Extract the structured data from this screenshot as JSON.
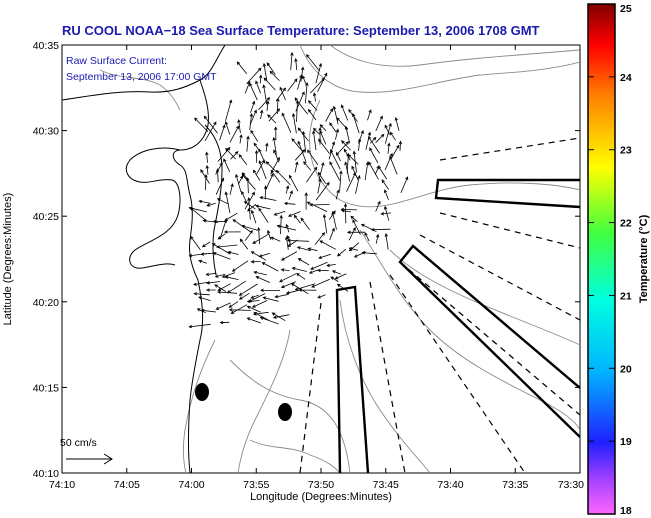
{
  "title": "RU COOL  NOAA−18  Sea Surface Temperature:  September 13, 2006 1708 GMT",
  "inset": {
    "line1": "Raw Surface Current:",
    "line2": "September 13, 2006 17:00 GMT"
  },
  "axes": {
    "xlabel": "Longitude (Degrees:Minutes)",
    "ylabel": "Latitude (Degrees:Minutes)",
    "xticks": [
      "74:10",
      "74:05",
      "74:00",
      "73:55",
      "73:50",
      "73:45",
      "73:40",
      "73:35",
      "73:30"
    ],
    "yticks": [
      "40:35",
      "40:30",
      "40:25",
      "40:20",
      "40:15",
      "40:10"
    ]
  },
  "scale_arrow": {
    "label": "50 cm/s"
  },
  "colorbar": {
    "label": "Temperature (°C)",
    "min": 18,
    "max": 25,
    "ticks": [
      "25",
      "24",
      "23",
      "22",
      "21",
      "20",
      "19",
      "18"
    ]
  },
  "colors": {
    "title": "#1a1ab0",
    "frame": "#000000",
    "contour": "#888888"
  },
  "markers": [
    {
      "name": "buoy-west",
      "lon": -73.985,
      "lat": 40.245
    },
    {
      "name": "buoy-east",
      "lon": -73.905,
      "lat": 40.225
    }
  ]
}
